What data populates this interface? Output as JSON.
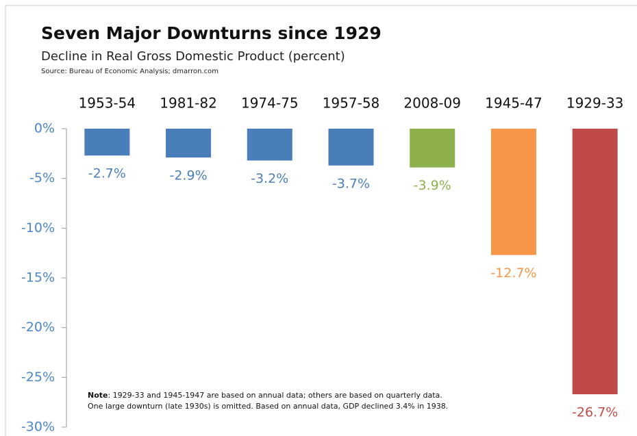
{
  "chart_data": {
    "type": "bar",
    "title": "Seven Major Downturns since 1929",
    "subtitle": "Decline in Real Gross Domestic Product (percent)",
    "source": "Source: Bureau of Economic Analysis; dmarron.com",
    "categories": [
      "1953-54",
      "1981-82",
      "1974-75",
      "1957-58",
      "2008-09",
      "1945-47",
      "1929-33"
    ],
    "values": [
      -2.7,
      -2.9,
      -3.2,
      -3.7,
      -3.9,
      -12.7,
      -26.7
    ],
    "value_labels": [
      "-2.7%",
      "-2.9%",
      "-3.2%",
      "-3.7%",
      "-3.9%",
      "-12.7%",
      "-26.7%"
    ],
    "colors": [
      "#4a7ebb",
      "#4a7ebb",
      "#4a7ebb",
      "#4a7ebb",
      "#8db04d",
      "#f79646",
      "#be4b48"
    ],
    "ylim": [
      0,
      -30
    ],
    "yticks": [
      {
        "value": 0,
        "label": "0%"
      },
      {
        "value": -5,
        "label": "-5%"
      },
      {
        "value": -10,
        "label": "-10%"
      },
      {
        "value": -15,
        "label": "-15%"
      },
      {
        "value": -20,
        "label": "-20%"
      },
      {
        "value": -25,
        "label": "-25%"
      },
      {
        "value": -30,
        "label": "-30%"
      }
    ],
    "grid": false,
    "note_label": "Note",
    "note_lines": [
      ": 1929-33 and 1945-1947 are based on annual data; others are based on quarterly data.",
      "One large downturn (late 1930s) is omitted. Based on annual data, GDP declined 3.4% in 1938."
    ]
  }
}
